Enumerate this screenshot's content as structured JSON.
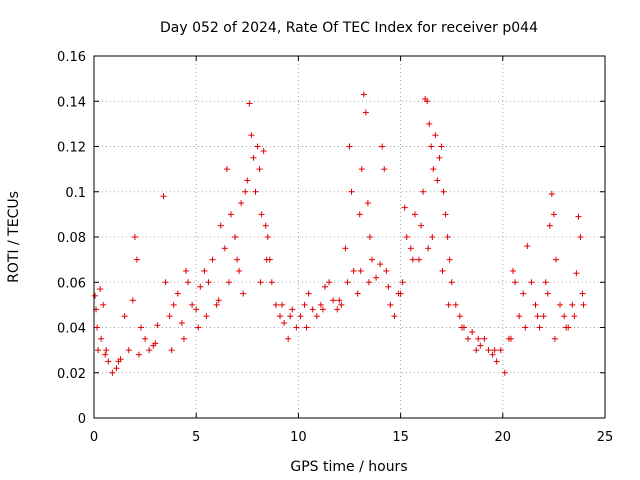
{
  "chart_data": {
    "type": "scatter",
    "title": "Day 052 of 2024, Rate Of TEC Index for receiver p044",
    "xlabel": "GPS time / hours",
    "ylabel": "ROTI / TECUs",
    "xlim": [
      0,
      25
    ],
    "ylim": [
      0,
      0.16
    ],
    "x_ticks": [
      0,
      5,
      10,
      15,
      20,
      25
    ],
    "x_tick_labels": [
      "0",
      "5",
      "10",
      "15",
      "20",
      "25"
    ],
    "y_ticks": [
      0,
      0.02,
      0.04,
      0.06,
      0.08,
      0.1,
      0.12,
      0.14,
      0.16
    ],
    "y_tick_labels": [
      "0",
      "0.02",
      "0.04",
      "0.06",
      "0.08",
      "0.1",
      "0.12",
      "0.14",
      "0.16"
    ],
    "grid": true,
    "marker": "+",
    "color": "#e00000",
    "series": [
      {
        "name": "p044",
        "x": [
          0.05,
          0.1,
          0.15,
          0.2,
          0.3,
          0.35,
          0.45,
          0.55,
          0.7,
          0.9,
          1.1,
          1.3,
          1.5,
          1.7,
          1.9,
          2.0,
          2.1,
          2.3,
          2.5,
          2.7,
          2.9,
          3.1,
          3.4,
          3.5,
          3.7,
          3.9,
          4.1,
          4.3,
          4.5,
          4.6,
          4.8,
          5.0,
          5.2,
          5.4,
          5.6,
          5.8,
          6.0,
          6.2,
          6.4,
          6.5,
          6.7,
          6.9,
          7.0,
          7.2,
          7.4,
          7.5,
          7.6,
          7.7,
          7.8,
          7.9,
          8.0,
          8.1,
          8.2,
          8.3,
          8.4,
          8.5,
          8.6,
          8.7,
          8.9,
          9.1,
          9.3,
          9.5,
          9.7,
          9.9,
          10.1,
          10.3,
          10.5,
          10.7,
          10.9,
          11.1,
          11.3,
          11.5,
          11.7,
          11.9,
          12.1,
          12.3,
          12.5,
          12.6,
          12.7,
          12.9,
          13.0,
          13.1,
          13.2,
          13.3,
          13.4,
          13.5,
          13.6,
          13.8,
          14.0,
          14.1,
          14.2,
          14.3,
          14.5,
          14.7,
          14.9,
          15.1,
          15.2,
          15.3,
          15.5,
          15.7,
          15.9,
          16.1,
          16.2,
          16.3,
          16.4,
          16.5,
          16.6,
          16.7,
          16.8,
          16.9,
          17.0,
          17.1,
          17.2,
          17.3,
          17.4,
          17.5,
          17.7,
          17.9,
          18.1,
          18.3,
          18.5,
          18.7,
          18.9,
          19.1,
          19.3,
          19.5,
          19.7,
          19.9,
          20.1,
          20.3,
          20.5,
          20.6,
          20.8,
          21.0,
          21.2,
          21.4,
          21.6,
          21.8,
          22.0,
          22.2,
          22.3,
          22.4,
          22.5,
          22.6,
          22.8,
          23.0,
          23.2,
          23.4,
          23.6,
          23.7,
          23.8,
          23.9,
          0.6,
          1.2,
          2.2,
          3.0,
          3.8,
          4.4,
          5.1,
          5.5,
          6.1,
          6.6,
          7.1,
          7.3,
          8.15,
          8.45,
          9.2,
          9.6,
          10.4,
          11.2,
          12.0,
          12.4,
          13.05,
          13.45,
          14.4,
          15.0,
          15.6,
          16.0,
          16.35,
          16.55,
          17.05,
          17.35,
          18.0,
          18.8,
          19.6,
          20.4,
          21.1,
          21.7,
          22.1,
          22.55,
          23.1,
          23.5,
          23.95
        ],
        "y": [
          0.054,
          0.048,
          0.04,
          0.03,
          0.057,
          0.035,
          0.05,
          0.028,
          0.025,
          0.02,
          0.022,
          0.026,
          0.045,
          0.03,
          0.052,
          0.08,
          0.07,
          0.04,
          0.035,
          0.03,
          0.032,
          0.041,
          0.098,
          0.06,
          0.045,
          0.05,
          0.055,
          0.042,
          0.065,
          0.06,
          0.05,
          0.048,
          0.058,
          0.065,
          0.06,
          0.07,
          0.05,
          0.085,
          0.075,
          0.11,
          0.09,
          0.08,
          0.07,
          0.095,
          0.1,
          0.105,
          0.139,
          0.125,
          0.115,
          0.1,
          0.12,
          0.11,
          0.09,
          0.118,
          0.085,
          0.08,
          0.07,
          0.06,
          0.05,
          0.045,
          0.042,
          0.035,
          0.048,
          0.04,
          0.045,
          0.05,
          0.055,
          0.048,
          0.045,
          0.05,
          0.058,
          0.06,
          0.052,
          0.048,
          0.05,
          0.075,
          0.12,
          0.1,
          0.065,
          0.055,
          0.09,
          0.11,
          0.143,
          0.135,
          0.095,
          0.08,
          0.07,
          0.062,
          0.068,
          0.12,
          0.11,
          0.065,
          0.05,
          0.045,
          0.055,
          0.06,
          0.093,
          0.08,
          0.075,
          0.09,
          0.07,
          0.1,
          0.141,
          0.14,
          0.13,
          0.12,
          0.11,
          0.125,
          0.105,
          0.115,
          0.12,
          0.1,
          0.09,
          0.08,
          0.07,
          0.06,
          0.05,
          0.045,
          0.04,
          0.035,
          0.038,
          0.03,
          0.032,
          0.035,
          0.03,
          0.028,
          0.025,
          0.03,
          0.02,
          0.035,
          0.065,
          0.06,
          0.045,
          0.055,
          0.076,
          0.06,
          0.05,
          0.04,
          0.045,
          0.055,
          0.085,
          0.099,
          0.09,
          0.07,
          0.05,
          0.045,
          0.04,
          0.05,
          0.064,
          0.089,
          0.08,
          0.055,
          0.03,
          0.025,
          0.028,
          0.033,
          0.03,
          0.035,
          0.04,
          0.045,
          0.052,
          0.06,
          0.065,
          0.055,
          0.06,
          0.07,
          0.05,
          0.045,
          0.04,
          0.048,
          0.052,
          0.06,
          0.065,
          0.06,
          0.058,
          0.055,
          0.07,
          0.085,
          0.075,
          0.08,
          0.065,
          0.05,
          0.04,
          0.035,
          0.03,
          0.035,
          0.04,
          0.045,
          0.06,
          0.035,
          0.04,
          0.045,
          0.05
        ]
      }
    ]
  }
}
